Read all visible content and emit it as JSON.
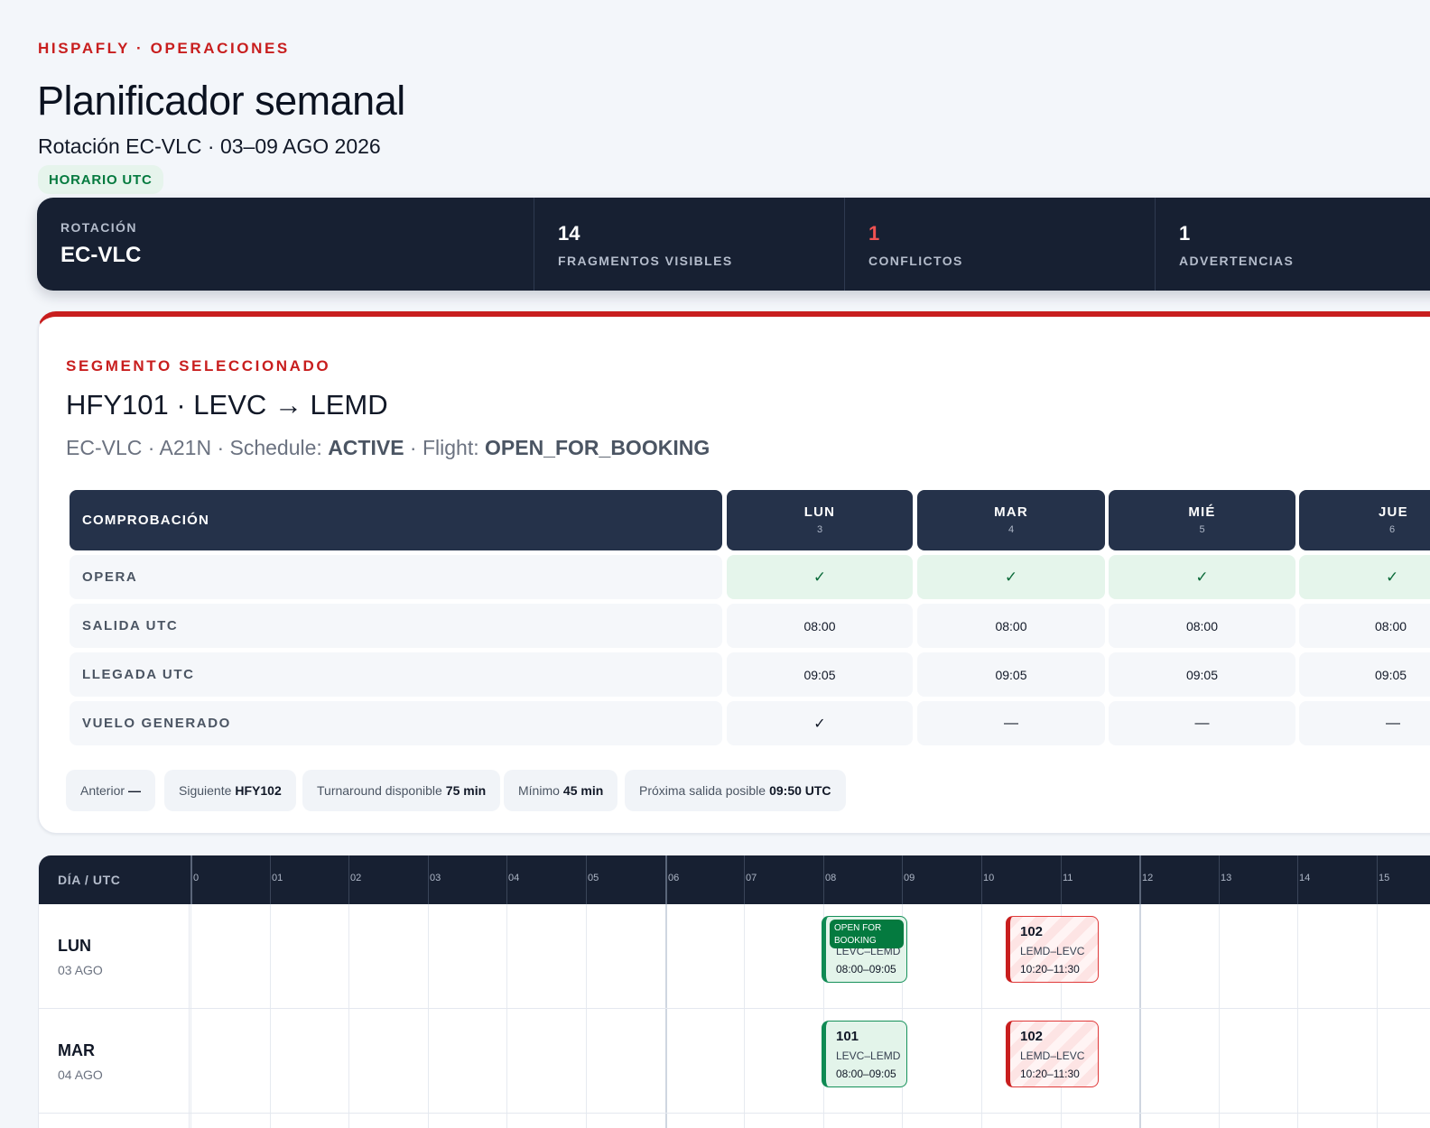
{
  "header": {
    "eyebrow": "HISPAFLY · OPERACIONES",
    "title": "Planificador semanal",
    "subtitle": "Rotación EC-VLC · 03–09 AGO 2026",
    "tz_badge": "HORARIO UTC"
  },
  "summary": {
    "rotation_label": "ROTACIÓN",
    "rotation_value": "EC-VLC",
    "stats": [
      {
        "value": "14",
        "label": "FRAGMENTOS VISIBLES"
      },
      {
        "value": "1",
        "label": "CONFLICTOS"
      },
      {
        "value": "1",
        "label": "ADVERTENCIAS"
      }
    ]
  },
  "selected": {
    "eyebrow": "SEGMENTO SELECCIONADO",
    "title": "HFY101 · LEVC → LEMD",
    "meta_prefix": "EC-VLC · A21N · Schedule:",
    "schedule_status": "ACTIVE",
    "meta_mid": " · Flight:",
    "flight_status": "OPEN_FOR_BOOKING",
    "table": {
      "header_label": "COMPROBACIÓN",
      "days": [
        {
          "name": "LUN",
          "num": "3"
        },
        {
          "name": "MAR",
          "num": "4"
        },
        {
          "name": "MIÉ",
          "num": "5"
        },
        {
          "name": "JUE",
          "num": "6"
        }
      ],
      "rows": [
        {
          "label": "OPERA",
          "values": [
            "✓",
            "✓",
            "✓",
            "✓"
          ]
        },
        {
          "label": "SALIDA UTC",
          "values": [
            "08:00",
            "08:00",
            "08:00",
            "08:00"
          ]
        },
        {
          "label": "LLEGADA UTC",
          "values": [
            "09:05",
            "09:05",
            "09:05",
            "09:05"
          ]
        },
        {
          "label": "VUELO GENERADO",
          "values": [
            "✓",
            "—",
            "—",
            "—"
          ]
        }
      ]
    },
    "chips": [
      {
        "label": "Anterior",
        "value": "—"
      },
      {
        "label": "Siguiente",
        "value": "HFY102"
      },
      {
        "label": "Turnaround disponible",
        "value": "75 min"
      },
      {
        "label": "Mínimo",
        "value": "45 min"
      },
      {
        "label": "Próxima salida posible",
        "value": "09:50 UTC"
      }
    ]
  },
  "timeline": {
    "corner_label": "DÍA / UTC",
    "hours": [
      "0",
      "01",
      "02",
      "03",
      "04",
      "05",
      "06",
      "07",
      "08",
      "09",
      "10",
      "11",
      "12",
      "13",
      "14",
      "15"
    ],
    "days": [
      {
        "name": "LUN",
        "date": "03 AGO",
        "flights": [
          {
            "number": "101",
            "route": "LEVC–LEMD",
            "time": "08:00–09:05",
            "status": "ok",
            "pill": "OPEN FOR BOOKING"
          },
          {
            "number": "102",
            "route": "LEMD–LEVC",
            "time": "10:20–11:30",
            "status": "conflict"
          }
        ]
      },
      {
        "name": "MAR",
        "date": "04 AGO",
        "flights": [
          {
            "number": "101",
            "route": "LEVC–LEMD",
            "time": "08:00–09:05",
            "status": "ok"
          },
          {
            "number": "102",
            "route": "LEMD–LEVC",
            "time": "10:20–11:30",
            "status": "conflict"
          }
        ]
      }
    ]
  },
  "colors": {
    "accent_red": "#c81e1e",
    "navy": "#172032",
    "ok_green": "#047a3f",
    "conflict_red": "#f05252"
  }
}
